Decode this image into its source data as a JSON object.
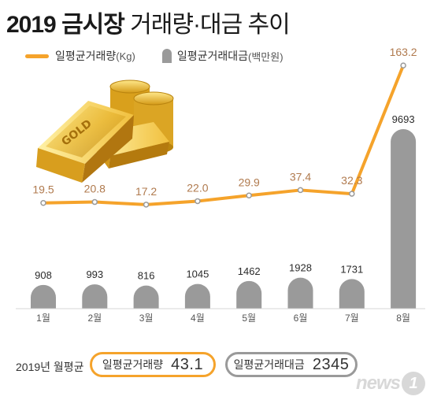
{
  "title": {
    "main": "2019 금시장",
    "sub": " 거래량·대금 추이"
  },
  "legend": {
    "volume_label": "일평균거래량",
    "volume_unit": "(Kg)",
    "value_label": "일평균거래대금",
    "value_unit": "(백만원)"
  },
  "colors": {
    "line": "#f5a32b",
    "bar": "#9a9a9a",
    "bar_label": "#2b2b2b",
    "line_label": "#b07a4e",
    "axis": "#d7d7d7"
  },
  "chart_data": {
    "type": "bar",
    "categories": [
      "1월",
      "2월",
      "3월",
      "4월",
      "5월",
      "6월",
      "7월",
      "8월"
    ],
    "series": [
      {
        "name": "일평균거래량(Kg)",
        "type": "line",
        "values": [
          19.5,
          20.8,
          17.2,
          22.0,
          29.9,
          37.4,
          32.3,
          163.2
        ]
      },
      {
        "name": "일평균거래대금(백만원)",
        "type": "bar",
        "values": [
          908,
          993,
          816,
          1045,
          1462,
          1928,
          1731,
          9693
        ]
      }
    ],
    "value_labels_line": [
      "19.5",
      "20.8",
      "17.2",
      "22.0",
      "29.9",
      "37.4",
      "32.3",
      "163.2"
    ],
    "value_labels_bar": [
      "908",
      "993",
      "816",
      "1045",
      "1462",
      "1928",
      "1731",
      "9693"
    ],
    "grid": false,
    "legend_position": "top-left"
  },
  "footer": {
    "year_label": "2019년 월평균",
    "volume_label": "일평균거래량",
    "volume_value": "43.1",
    "value_label": "일평균거래대금",
    "value_value": "2345"
  },
  "logo": {
    "text": "news",
    "mark": "1"
  }
}
